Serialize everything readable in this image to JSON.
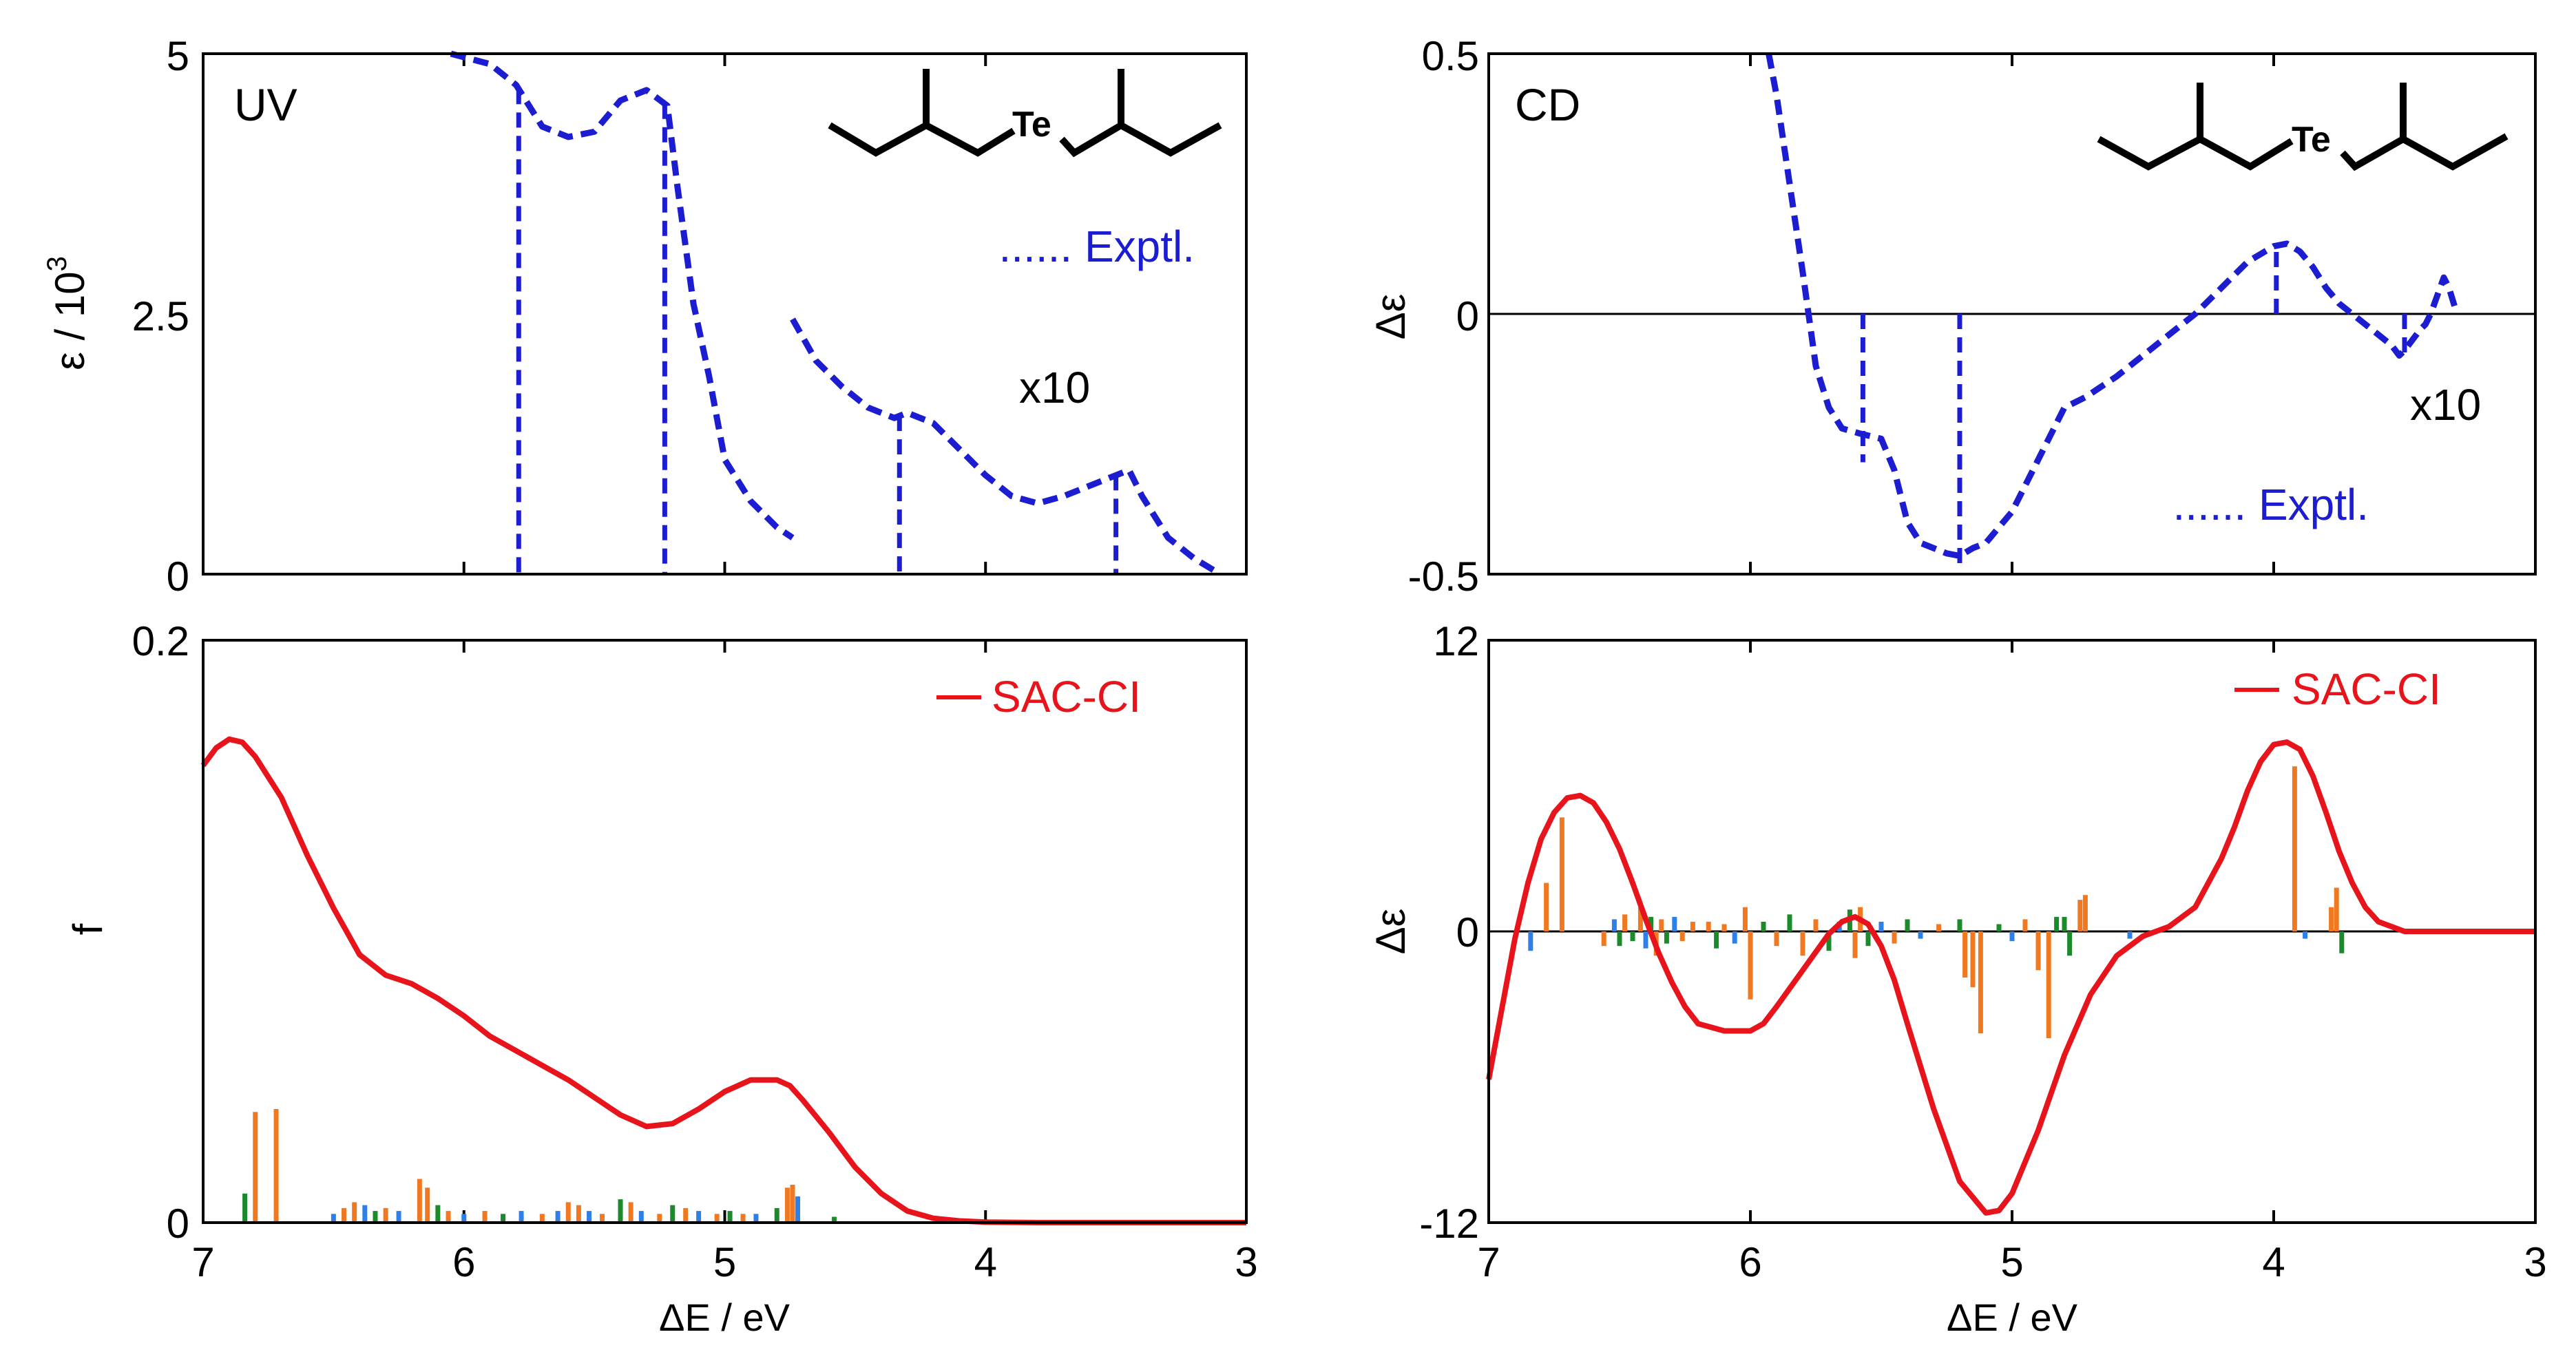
{
  "colors": {
    "exptl": "#1c1cd0",
    "calc": "#e8141c",
    "stick_orange": "#f07820",
    "stick_green": "#1a8a2a",
    "stick_blue": "#2f7fe8",
    "axis": "#000000"
  },
  "x_axis": {
    "label": "ΔE / eV",
    "range": [
      7,
      3
    ],
    "ticks": [
      "7",
      "6",
      "5",
      "4",
      "3"
    ]
  },
  "molecule": {
    "label": "Te"
  },
  "chart_data": [
    {
      "id": "uv-exptl",
      "type": "line",
      "panel_label": "UV",
      "ylabel": "ε / 10",
      "ylabel_sup": "3",
      "xlim": [
        7,
        3
      ],
      "ylim": [
        0,
        5
      ],
      "y_ticks": [
        "0",
        "2.5",
        "5"
      ],
      "legend": "...... Exptl.",
      "annotation": "x10",
      "series": [
        {
          "name": "Exptl. main",
          "x": [
            6.05,
            5.9,
            5.8,
            5.7,
            5.6,
            5.5,
            5.4,
            5.3,
            5.22,
            5.18,
            5.12,
            5.06,
            5.0,
            4.95,
            4.9,
            4.8,
            4.74
          ],
          "y": [
            5.0,
            4.9,
            4.7,
            4.3,
            4.2,
            4.25,
            4.55,
            4.65,
            4.5,
            3.7,
            2.6,
            1.9,
            1.1,
            0.9,
            0.7,
            0.45,
            0.35
          ]
        },
        {
          "name": "Exptl. x10",
          "x": [
            4.74,
            4.65,
            4.55,
            4.45,
            4.35,
            4.3,
            4.2,
            4.1,
            4.0,
            3.9,
            3.8,
            3.7,
            3.6,
            3.5,
            3.45,
            3.4,
            3.3,
            3.2,
            3.1
          ],
          "y": [
            2.45,
            2.05,
            1.8,
            1.6,
            1.5,
            1.55,
            1.45,
            1.2,
            0.95,
            0.75,
            0.68,
            0.75,
            0.85,
            0.95,
            1.0,
            0.75,
            0.35,
            0.15,
            0.0
          ]
        }
      ],
      "drops": [
        5.79,
        5.23,
        4.33,
        3.5
      ]
    },
    {
      "id": "cd-exptl",
      "type": "line",
      "panel_label": "CD",
      "ylabel": "Δε",
      "xlim": [
        7,
        3
      ],
      "ylim": [
        -0.5,
        0.5
      ],
      "y_ticks": [
        "-0.5",
        "0",
        "0.5"
      ],
      "legend": "...... Exptl.",
      "annotation": "x10",
      "series": [
        {
          "name": "Exptl.",
          "x": [
            5.93,
            5.9,
            5.85,
            5.8,
            5.75,
            5.7,
            5.65,
            5.58,
            5.5,
            5.45,
            5.4,
            5.35,
            5.3,
            5.25,
            5.2,
            5.15,
            5.1,
            5.0,
            4.9,
            4.8,
            4.72,
            4.6,
            4.5,
            4.4,
            4.3,
            4.2,
            4.1,
            4.0,
            3.95,
            3.9,
            3.85,
            3.8,
            3.75,
            3.7,
            3.65,
            3.6,
            3.55,
            3.52,
            3.5,
            3.47,
            3.44,
            3.42,
            3.4,
            3.35,
            3.33,
            3.3
          ],
          "y": [
            0.5,
            0.42,
            0.25,
            0.08,
            -0.1,
            -0.18,
            -0.22,
            -0.23,
            -0.24,
            -0.3,
            -0.4,
            -0.44,
            -0.45,
            -0.46,
            -0.465,
            -0.45,
            -0.44,
            -0.38,
            -0.28,
            -0.18,
            -0.16,
            -0.12,
            -0.08,
            -0.04,
            0.0,
            0.05,
            0.1,
            0.13,
            0.135,
            0.12,
            0.09,
            0.05,
            0.02,
            0.0,
            -0.02,
            -0.04,
            -0.06,
            -0.08,
            -0.07,
            -0.05,
            -0.03,
            -0.02,
            0.0,
            0.07,
            0.05,
            0.0
          ]
        }
      ],
      "drops": [
        {
          "x": 5.57,
          "y": -0.285
        },
        {
          "x": 5.2,
          "y": -0.48
        },
        {
          "x": 3.99,
          "y": 0.13
        },
        {
          "x": 3.5,
          "y": -0.08
        }
      ],
      "zero_line": true
    },
    {
      "id": "uv-sacci",
      "type": "line",
      "ylabel": "f",
      "xlim": [
        7,
        3
      ],
      "ylim": [
        0,
        0.2
      ],
      "y_ticks": [
        "0",
        "0.2"
      ],
      "legend": "SAC-CI",
      "series": [
        {
          "name": "SAC-CI",
          "x": [
            7.0,
            6.95,
            6.9,
            6.85,
            6.8,
            6.7,
            6.6,
            6.5,
            6.4,
            6.3,
            6.2,
            6.1,
            6.0,
            5.9,
            5.8,
            5.7,
            5.6,
            5.5,
            5.4,
            5.3,
            5.2,
            5.1,
            5.0,
            4.9,
            4.8,
            4.75,
            4.7,
            4.6,
            4.5,
            4.4,
            4.3,
            4.2,
            4.1,
            4.0,
            3.9,
            3.8,
            3.5,
            3.0
          ],
          "y": [
            0.157,
            0.163,
            0.166,
            0.165,
            0.16,
            0.146,
            0.126,
            0.108,
            0.092,
            0.085,
            0.082,
            0.077,
            0.071,
            0.064,
            0.059,
            0.054,
            0.049,
            0.043,
            0.037,
            0.033,
            0.034,
            0.039,
            0.045,
            0.049,
            0.049,
            0.047,
            0.042,
            0.031,
            0.019,
            0.01,
            0.004,
            0.0015,
            0.0006,
            0.0002,
            0.0001,
            0.0,
            0.0,
            0.0
          ]
        }
      ],
      "sticks": [
        {
          "x": 6.8,
          "h": 0.038,
          "c": "o"
        },
        {
          "x": 6.72,
          "h": 0.039,
          "c": "o"
        },
        {
          "x": 6.84,
          "h": 0.01,
          "c": "g"
        },
        {
          "x": 6.5,
          "h": 0.003,
          "c": "b"
        },
        {
          "x": 6.46,
          "h": 0.005,
          "c": "o"
        },
        {
          "x": 6.42,
          "h": 0.007,
          "c": "o"
        },
        {
          "x": 6.38,
          "h": 0.006,
          "c": "b"
        },
        {
          "x": 6.34,
          "h": 0.004,
          "c": "g"
        },
        {
          "x": 6.3,
          "h": 0.005,
          "c": "o"
        },
        {
          "x": 6.25,
          "h": 0.004,
          "c": "b"
        },
        {
          "x": 6.17,
          "h": 0.015,
          "c": "o"
        },
        {
          "x": 6.14,
          "h": 0.012,
          "c": "o"
        },
        {
          "x": 6.1,
          "h": 0.006,
          "c": "g"
        },
        {
          "x": 6.06,
          "h": 0.004,
          "c": "o"
        },
        {
          "x": 6.0,
          "h": 0.003,
          "c": "b"
        },
        {
          "x": 5.92,
          "h": 0.004,
          "c": "o"
        },
        {
          "x": 5.85,
          "h": 0.003,
          "c": "g"
        },
        {
          "x": 5.78,
          "h": 0.004,
          "c": "b"
        },
        {
          "x": 5.7,
          "h": 0.003,
          "c": "o"
        },
        {
          "x": 5.64,
          "h": 0.004,
          "c": "b"
        },
        {
          "x": 5.6,
          "h": 0.007,
          "c": "o"
        },
        {
          "x": 5.56,
          "h": 0.006,
          "c": "o"
        },
        {
          "x": 5.52,
          "h": 0.004,
          "c": "b"
        },
        {
          "x": 5.47,
          "h": 0.003,
          "c": "o"
        },
        {
          "x": 5.4,
          "h": 0.008,
          "c": "g"
        },
        {
          "x": 5.36,
          "h": 0.007,
          "c": "o"
        },
        {
          "x": 5.32,
          "h": 0.004,
          "c": "b"
        },
        {
          "x": 5.25,
          "h": 0.003,
          "c": "o"
        },
        {
          "x": 5.2,
          "h": 0.006,
          "c": "g"
        },
        {
          "x": 5.15,
          "h": 0.005,
          "c": "o"
        },
        {
          "x": 5.1,
          "h": 0.004,
          "c": "b"
        },
        {
          "x": 5.03,
          "h": 0.003,
          "c": "o"
        },
        {
          "x": 4.98,
          "h": 0.004,
          "c": "g"
        },
        {
          "x": 4.93,
          "h": 0.003,
          "c": "o"
        },
        {
          "x": 4.88,
          "h": 0.003,
          "c": "b"
        },
        {
          "x": 4.8,
          "h": 0.005,
          "c": "g"
        },
        {
          "x": 4.76,
          "h": 0.012,
          "c": "o"
        },
        {
          "x": 4.74,
          "h": 0.013,
          "c": "o"
        },
        {
          "x": 4.72,
          "h": 0.009,
          "c": "b"
        },
        {
          "x": 4.58,
          "h": 0.002,
          "c": "g"
        }
      ]
    },
    {
      "id": "cd-sacci",
      "type": "line",
      "ylabel": "Δε",
      "xlim": [
        7,
        3
      ],
      "ylim": [
        -12,
        12
      ],
      "y_ticks": [
        "-12",
        "0",
        "12"
      ],
      "legend": "SAC-CI",
      "zero_line": true,
      "series": [
        {
          "name": "SAC-CI",
          "x": [
            7.0,
            6.95,
            6.9,
            6.85,
            6.8,
            6.75,
            6.7,
            6.65,
            6.6,
            6.55,
            6.5,
            6.45,
            6.4,
            6.35,
            6.3,
            6.25,
            6.2,
            6.1,
            6.0,
            5.95,
            5.9,
            5.8,
            5.7,
            5.65,
            5.6,
            5.55,
            5.5,
            5.45,
            5.4,
            5.3,
            5.2,
            5.1,
            5.05,
            5.0,
            4.9,
            4.8,
            4.7,
            4.6,
            4.5,
            4.4,
            4.3,
            4.2,
            4.15,
            4.1,
            4.05,
            4.0,
            3.95,
            3.9,
            3.85,
            3.8,
            3.75,
            3.7,
            3.65,
            3.6,
            3.5,
            3.4,
            3.0
          ],
          "y": [
            -6.1,
            -3.2,
            -0.3,
            2.0,
            3.8,
            4.9,
            5.5,
            5.6,
            5.3,
            4.5,
            3.4,
            2.0,
            0.5,
            -0.9,
            -2.1,
            -3.1,
            -3.8,
            -4.1,
            -4.1,
            -3.8,
            -3.1,
            -1.6,
            -0.1,
            0.4,
            0.6,
            0.3,
            -0.6,
            -2.0,
            -3.8,
            -7.3,
            -10.3,
            -11.6,
            -11.5,
            -10.8,
            -8.2,
            -5.1,
            -2.6,
            -1.0,
            -0.2,
            0.2,
            1.0,
            3.0,
            4.3,
            5.8,
            7.0,
            7.7,
            7.8,
            7.5,
            6.4,
            4.9,
            3.3,
            2.0,
            1.0,
            0.4,
            0.0,
            0.0,
            0.0
          ]
        }
      ],
      "sticks": [
        {
          "x": 6.84,
          "h": -0.8,
          "c": "b"
        },
        {
          "x": 6.78,
          "h": 2.0,
          "c": "o"
        },
        {
          "x": 6.72,
          "h": 4.7,
          "c": "o"
        },
        {
          "x": 6.56,
          "h": -0.6,
          "c": "o"
        },
        {
          "x": 6.52,
          "h": 0.5,
          "c": "b"
        },
        {
          "x": 6.5,
          "h": -0.6,
          "c": "g"
        },
        {
          "x": 6.48,
          "h": 0.7,
          "c": "o"
        },
        {
          "x": 6.45,
          "h": -0.4,
          "c": "g"
        },
        {
          "x": 6.42,
          "h": 1.0,
          "c": "o"
        },
        {
          "x": 6.4,
          "h": -0.7,
          "c": "b"
        },
        {
          "x": 6.38,
          "h": 0.6,
          "c": "g"
        },
        {
          "x": 6.36,
          "h": -1.0,
          "c": "o"
        },
        {
          "x": 6.34,
          "h": 0.5,
          "c": "o"
        },
        {
          "x": 6.32,
          "h": -0.5,
          "c": "g"
        },
        {
          "x": 6.29,
          "h": 0.6,
          "c": "b"
        },
        {
          "x": 6.26,
          "h": -0.4,
          "c": "o"
        },
        {
          "x": 6.22,
          "h": 0.4,
          "c": "o"
        },
        {
          "x": 6.16,
          "h": 0.4,
          "c": "o"
        },
        {
          "x": 6.13,
          "h": -0.7,
          "c": "g"
        },
        {
          "x": 6.1,
          "h": 0.3,
          "c": "o"
        },
        {
          "x": 6.06,
          "h": -0.5,
          "c": "b"
        },
        {
          "x": 6.02,
          "h": 1.0,
          "c": "o"
        },
        {
          "x": 6.0,
          "h": -2.8,
          "c": "o"
        },
        {
          "x": 5.95,
          "h": 0.4,
          "c": "g"
        },
        {
          "x": 5.9,
          "h": -0.6,
          "c": "o"
        },
        {
          "x": 5.85,
          "h": 0.7,
          "c": "g"
        },
        {
          "x": 5.8,
          "h": -1.0,
          "c": "o"
        },
        {
          "x": 5.75,
          "h": 0.5,
          "c": "o"
        },
        {
          "x": 5.7,
          "h": -0.8,
          "c": "g"
        },
        {
          "x": 5.66,
          "h": 0.4,
          "c": "b"
        },
        {
          "x": 5.62,
          "h": 0.9,
          "c": "g"
        },
        {
          "x": 5.6,
          "h": -1.1,
          "c": "o"
        },
        {
          "x": 5.58,
          "h": 1.0,
          "c": "o"
        },
        {
          "x": 5.55,
          "h": -0.6,
          "c": "g"
        },
        {
          "x": 5.5,
          "h": 0.4,
          "c": "b"
        },
        {
          "x": 5.45,
          "h": -0.5,
          "c": "o"
        },
        {
          "x": 5.4,
          "h": 0.5,
          "c": "g"
        },
        {
          "x": 5.35,
          "h": -0.3,
          "c": "b"
        },
        {
          "x": 5.28,
          "h": 0.3,
          "c": "o"
        },
        {
          "x": 5.2,
          "h": 0.5,
          "c": "g"
        },
        {
          "x": 5.18,
          "h": -1.9,
          "c": "o"
        },
        {
          "x": 5.15,
          "h": -2.3,
          "c": "o"
        },
        {
          "x": 5.12,
          "h": -4.2,
          "c": "o"
        },
        {
          "x": 5.05,
          "h": 0.3,
          "c": "g"
        },
        {
          "x": 5.0,
          "h": -0.4,
          "c": "b"
        },
        {
          "x": 4.95,
          "h": 0.5,
          "c": "o"
        },
        {
          "x": 4.9,
          "h": -1.6,
          "c": "o"
        },
        {
          "x": 4.86,
          "h": -4.4,
          "c": "o"
        },
        {
          "x": 4.83,
          "h": 0.6,
          "c": "g"
        },
        {
          "x": 4.8,
          "h": 0.6,
          "c": "g"
        },
        {
          "x": 4.78,
          "h": -1.0,
          "c": "g"
        },
        {
          "x": 4.74,
          "h": 1.3,
          "c": "o"
        },
        {
          "x": 4.72,
          "h": 1.5,
          "c": "o"
        },
        {
          "x": 4.55,
          "h": -0.3,
          "c": "b"
        },
        {
          "x": 3.92,
          "h": 6.8,
          "c": "o"
        },
        {
          "x": 3.88,
          "h": -0.3,
          "c": "b"
        },
        {
          "x": 3.78,
          "h": 1.0,
          "c": "o"
        },
        {
          "x": 3.76,
          "h": 1.8,
          "c": "o"
        },
        {
          "x": 3.74,
          "h": -0.9,
          "c": "g"
        }
      ]
    }
  ]
}
